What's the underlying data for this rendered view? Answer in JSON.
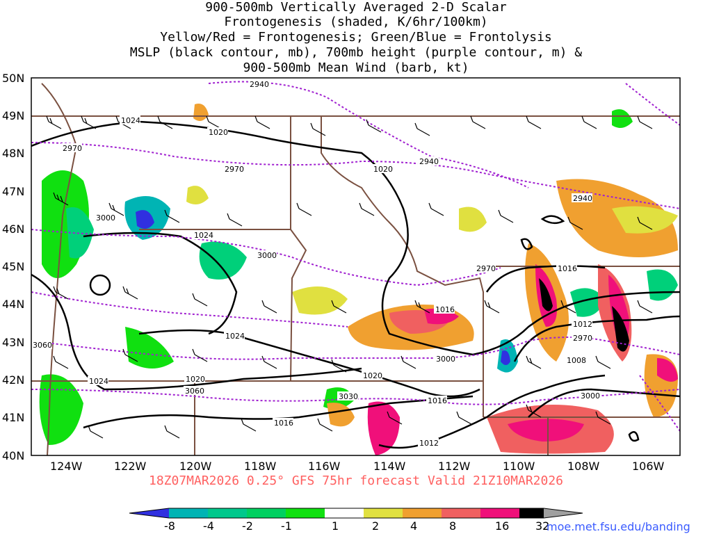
{
  "title_lines": [
    "900-500mb Vertically Averaged 2-D Scalar",
    "Frontogenesis (shaded, K/6hr/100km)",
    "Yellow/Red = Frontogenesis;  Green/Blue = Frontolysis",
    "MSLP (black contour, mb), 700mb height (purple contour, m) &",
    "900-500mb Mean Wind (barb, kt)"
  ],
  "footer": "18Z07MAR2026 0.25° GFS 75hr forecast Valid 21Z10MAR2026",
  "credit": "moe.met.fsu.edu/banding",
  "map": {
    "lon_range": [
      -125,
      -105
    ],
    "lat_range": [
      40,
      50
    ],
    "lat_labels": [
      "50N",
      "49N",
      "48N",
      "47N",
      "46N",
      "45N",
      "44N",
      "43N",
      "42N",
      "41N",
      "40N"
    ],
    "lon_labels": [
      "124W",
      "122W",
      "120W",
      "118W",
      "116W",
      "114W",
      "112W",
      "110W",
      "108W",
      "106W"
    ],
    "mslp_labels": [
      "1024",
      "1020",
      "1020",
      "1024",
      "1024",
      "1020",
      "1020",
      "1016",
      "1016",
      "1016",
      "1012",
      "1012",
      "1008",
      "1016"
    ],
    "height_labels": [
      "2940",
      "2970",
      "2970",
      "3000",
      "3000",
      "2940",
      "2940",
      "2970",
      "2970",
      "3000",
      "3060",
      "3060",
      "3030",
      "3000"
    ],
    "colors": {
      "frontolysis_strong": "#3030e0",
      "frontolysis_mod": "#00b4b4",
      "frontolysis_weak": "#00d07a",
      "frontolysis_min": "#10e010",
      "frontogenesis_min": "#e0e040",
      "frontogenesis_weak": "#f0a030",
      "frontogenesis_mod": "#f06060",
      "frontogenesis_strong": "#f0107a",
      "frontogenesis_max": "#000000",
      "frontogenesis_extreme": "#a0a0a0",
      "mslp_contour": "#000000",
      "height_contour": "#a020d0",
      "borders": "#7a5040"
    }
  },
  "colorbar": {
    "labels": [
      "-8",
      "-4",
      "-2",
      "-1",
      "1",
      "2",
      "4",
      "8",
      "16",
      "32"
    ],
    "colors": [
      "#3030e0",
      "#00b4b4",
      "#00c88c",
      "#00d060",
      "#10e010",
      "#ffffff",
      "#e0e040",
      "#f0a030",
      "#f06060",
      "#f0107a",
      "#000000",
      "#a0a0a0"
    ]
  }
}
